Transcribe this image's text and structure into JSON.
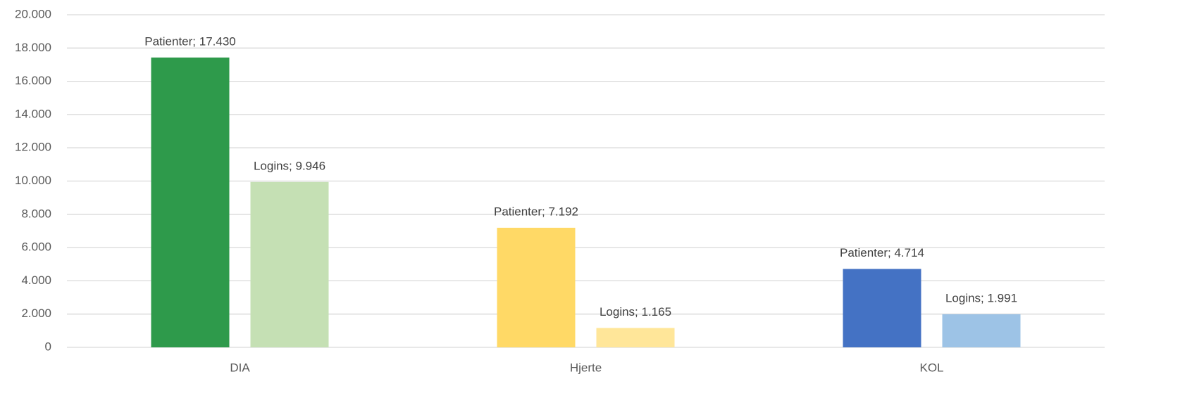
{
  "chart_data": {
    "type": "bar",
    "categories": [
      "DIA",
      "Hjerte",
      "KOL"
    ],
    "series": [
      {
        "colors": [
          "#2e9a4b",
          "#ffd966",
          "#4472c4"
        ],
        "values": [
          17430,
          7192,
          4714
        ],
        "value_labels": [
          "Patienter; 17.430",
          "Patienter; 7.192",
          "Patienter; 4.714"
        ]
      },
      {
        "colors": [
          "#c5e0b4",
          "#ffe699",
          "#9dc3e6"
        ],
        "values": [
          9946,
          1165,
          1991
        ],
        "value_labels": [
          "Logins; 9.946",
          "Logins; 1.165",
          "Logins; 1.991"
        ]
      }
    ],
    "ylim": [
      0,
      20000
    ],
    "yticks": [
      {
        "value": 0,
        "label": "0"
      },
      {
        "value": 2000,
        "label": "2.000"
      },
      {
        "value": 4000,
        "label": "4.000"
      },
      {
        "value": 6000,
        "label": "6.000"
      },
      {
        "value": 8000,
        "label": "8.000"
      },
      {
        "value": 10000,
        "label": "10.000"
      },
      {
        "value": 12000,
        "label": "12.000"
      },
      {
        "value": 14000,
        "label": "14.000"
      },
      {
        "value": 16000,
        "label": "16.000"
      },
      {
        "value": 18000,
        "label": "18.000"
      },
      {
        "value": 20000,
        "label": "20.000"
      }
    ],
    "grid": true
  }
}
